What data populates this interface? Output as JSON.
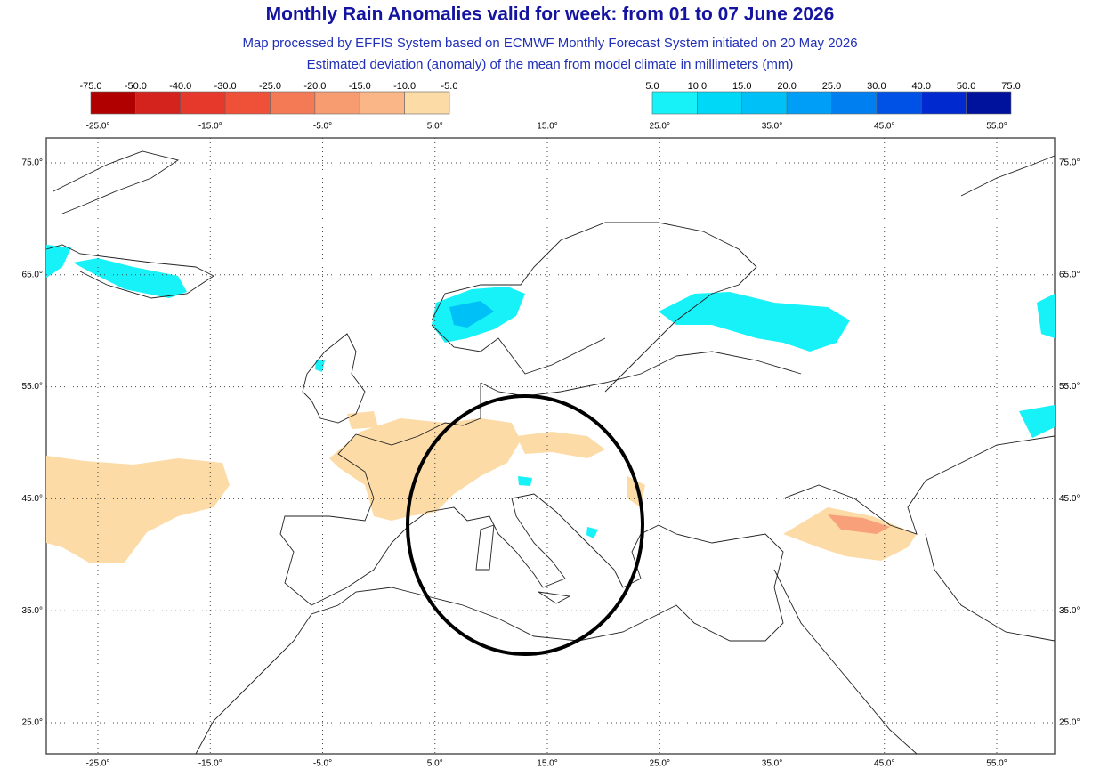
{
  "header": {
    "title": "Monthly Rain Anomalies valid for week: from 01 to 07 June 2026",
    "subtitle": "Map processed by EFFIS System based on ECMWF Monthly Forecast System initiated on 20 May 2026",
    "description": "Estimated deviation (anomaly) of the mean from model climate in millimeters (mm)"
  },
  "legend": {
    "negative": {
      "labels": [
        "-75.0",
        "-50.0",
        "-40.0",
        "-30.0",
        "-25.0",
        "-20.0",
        "-15.0",
        "-10.0",
        "-5.0"
      ],
      "colors": [
        "#b00000",
        "#d4231c",
        "#e6392b",
        "#ef5138",
        "#f47a55",
        "#f79c70",
        "#fab686",
        "#fcdba6"
      ]
    },
    "positive": {
      "labels": [
        "5.0",
        "10.0",
        "15.0",
        "20.0",
        "25.0",
        "30.0",
        "40.0",
        "50.0",
        "75.0"
      ],
      "colors": [
        "#16f2f8",
        "#00d8f8",
        "#00c0f8",
        "#009ef6",
        "#0080f0",
        "#0052e6",
        "#002ad0",
        "#00129c"
      ]
    }
  },
  "map": {
    "lon_labels": [
      "-25.0°",
      "-15.0°",
      "-5.0°",
      "5.0°",
      "15.0°",
      "25.0°",
      "35.0°",
      "45.0°",
      "55.0°"
    ],
    "lat_labels": [
      "75.0°",
      "65.0°",
      "55.0°",
      "45.0°",
      "35.0°",
      "25.0°"
    ]
  }
}
